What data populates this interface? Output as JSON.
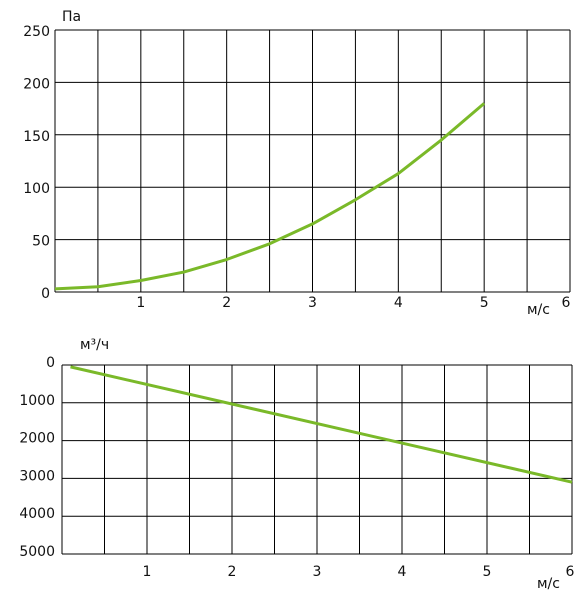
{
  "chart_data": [
    {
      "type": "line",
      "y_label": "Па",
      "x_label": "м/с",
      "x": [
        0,
        0.5,
        1,
        1.5,
        2,
        2.5,
        3,
        3.5,
        4,
        4.5,
        5
      ],
      "values": [
        3,
        5,
        11,
        19,
        31,
        46,
        65,
        88,
        113,
        145,
        180
      ],
      "color": "#7ab929",
      "xlim": [
        0,
        6
      ],
      "xticks": [
        1,
        2,
        3,
        4,
        5,
        6
      ],
      "ylim": [
        0,
        250
      ],
      "yticks": [
        0,
        50,
        100,
        150,
        200,
        250
      ],
      "grid": true
    },
    {
      "type": "line",
      "y_label": "м³/ч",
      "x_label": "м/с",
      "x": [
        0.1,
        6
      ],
      "values": [
        50,
        3100
      ],
      "color": "#7ab929",
      "xlim": [
        0,
        6
      ],
      "xticks": [
        1,
        2,
        3,
        4,
        5,
        6
      ],
      "ylim": [
        5000,
        0
      ],
      "yticks": [
        0,
        1000,
        2000,
        3000,
        4000,
        5000
      ],
      "grid": true
    }
  ]
}
